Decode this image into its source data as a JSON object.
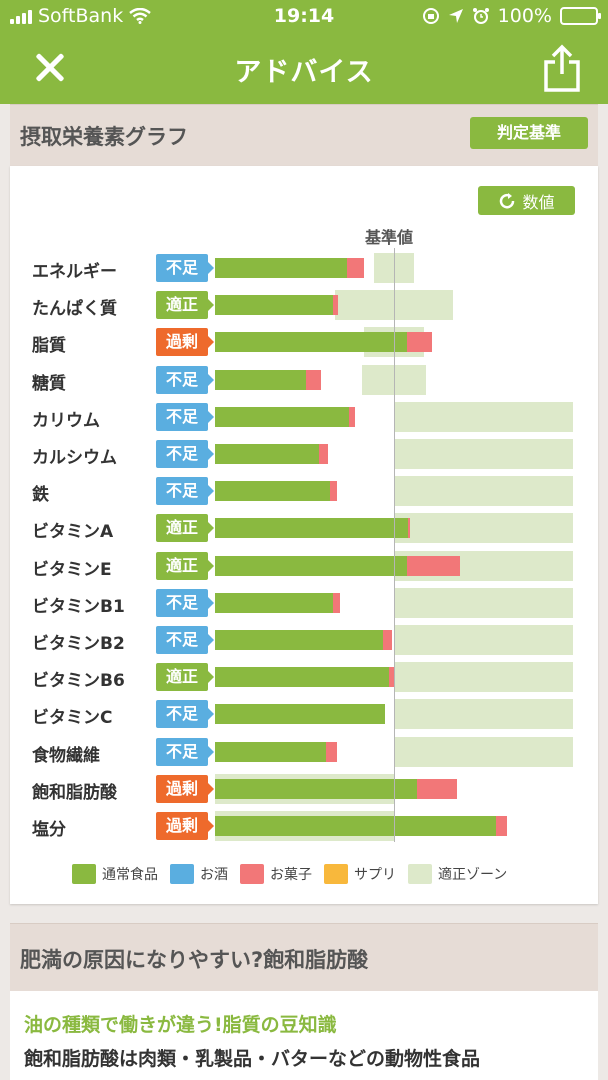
{
  "status": {
    "carrier": "SoftBank",
    "time": "19:14",
    "battery": "100%",
    "battery_level": 1.0
  },
  "nav": {
    "title": "アドバイス"
  },
  "section1": {
    "title": "摂取栄養素グラフ",
    "criteria_button": "判定基準",
    "value_button": "数値",
    "reference_label": "基準値"
  },
  "colors": {
    "brand": "#8ab940",
    "insufficient": "#5aaee0",
    "appropriate": "#8ab940",
    "excess": "#ee6a2c",
    "normal_food": "#8ab940",
    "alcohol": "#5aaee0",
    "snack": "#f27778",
    "supplement": "#f8b83c",
    "zone": "#dde9ca"
  },
  "chart_data": {
    "type": "bar",
    "orientation": "horizontal",
    "reference_percent": 100,
    "axis_max_percent": 200,
    "rows": [
      {
        "name": "エネルギー",
        "status": "不足",
        "status_type": "insufficient",
        "normal": 74,
        "snack": 9,
        "zone": [
          89,
          111
        ]
      },
      {
        "name": "たんぱく質",
        "status": "適正",
        "status_type": "appropriate",
        "normal": 66,
        "snack": 3,
        "zone": [
          67,
          133
        ]
      },
      {
        "name": "脂質",
        "status": "過剰",
        "status_type": "excess",
        "normal": 107,
        "snack": 14,
        "zone": [
          83,
          117
        ]
      },
      {
        "name": "糖質",
        "status": "不足",
        "status_type": "insufficient",
        "normal": 51,
        "snack": 8,
        "zone": [
          82,
          118
        ]
      },
      {
        "name": "カリウム",
        "status": "不足",
        "status_type": "insufficient",
        "normal": 75,
        "snack": 3,
        "zone": [
          100,
          200
        ]
      },
      {
        "name": "カルシウム",
        "status": "不足",
        "status_type": "insufficient",
        "normal": 58,
        "snack": 5,
        "zone": [
          100,
          200
        ]
      },
      {
        "name": "鉄",
        "status": "不足",
        "status_type": "insufficient",
        "normal": 64,
        "snack": 4,
        "zone": [
          100,
          200
        ]
      },
      {
        "name": "ビタミンA",
        "status": "適正",
        "status_type": "appropriate",
        "normal": 108,
        "snack": 1,
        "zone": [
          100,
          200
        ]
      },
      {
        "name": "ビタミンE",
        "status": "適正",
        "status_type": "appropriate",
        "normal": 107,
        "snack": 30,
        "zone": [
          100,
          200
        ]
      },
      {
        "name": "ビタミンB1",
        "status": "不足",
        "status_type": "insufficient",
        "normal": 66,
        "snack": 4,
        "zone": [
          100,
          200
        ]
      },
      {
        "name": "ビタミンB2",
        "status": "不足",
        "status_type": "insufficient",
        "normal": 94,
        "snack": 5,
        "zone": [
          100,
          200
        ]
      },
      {
        "name": "ビタミンB6",
        "status": "適正",
        "status_type": "appropriate",
        "normal": 97,
        "snack": 3,
        "zone": [
          100,
          200
        ]
      },
      {
        "name": "ビタミンC",
        "status": "不足",
        "status_type": "insufficient",
        "normal": 95,
        "snack": 0,
        "zone": [
          100,
          200
        ]
      },
      {
        "name": "食物繊維",
        "status": "不足",
        "status_type": "insufficient",
        "normal": 62,
        "snack": 6,
        "zone": [
          100,
          200
        ]
      },
      {
        "name": "飽和脂肪酸",
        "status": "過剰",
        "status_type": "excess",
        "normal": 113,
        "snack": 22,
        "zone": [
          0,
          100
        ]
      },
      {
        "name": "塩分",
        "status": "過剰",
        "status_type": "excess",
        "normal": 157,
        "snack": 6,
        "zone": [
          0,
          100
        ]
      }
    ],
    "legend": [
      {
        "label": "通常食品",
        "color": "#8ab940"
      },
      {
        "label": "お酒",
        "color": "#5aaee0"
      },
      {
        "label": "お菓子",
        "color": "#f27778"
      },
      {
        "label": "サプリ",
        "color": "#f8b83c"
      },
      {
        "label": "適正ゾーン",
        "color": "#dde9ca"
      }
    ]
  },
  "section2": {
    "title": "肥満の原因になりやすい?飽和脂肪酸",
    "subtitle": "油の種類で働きが違う!脂質の豆知識",
    "body": "飽和脂肪酸は肉類・乳製品・バターなどの動物性食品"
  }
}
